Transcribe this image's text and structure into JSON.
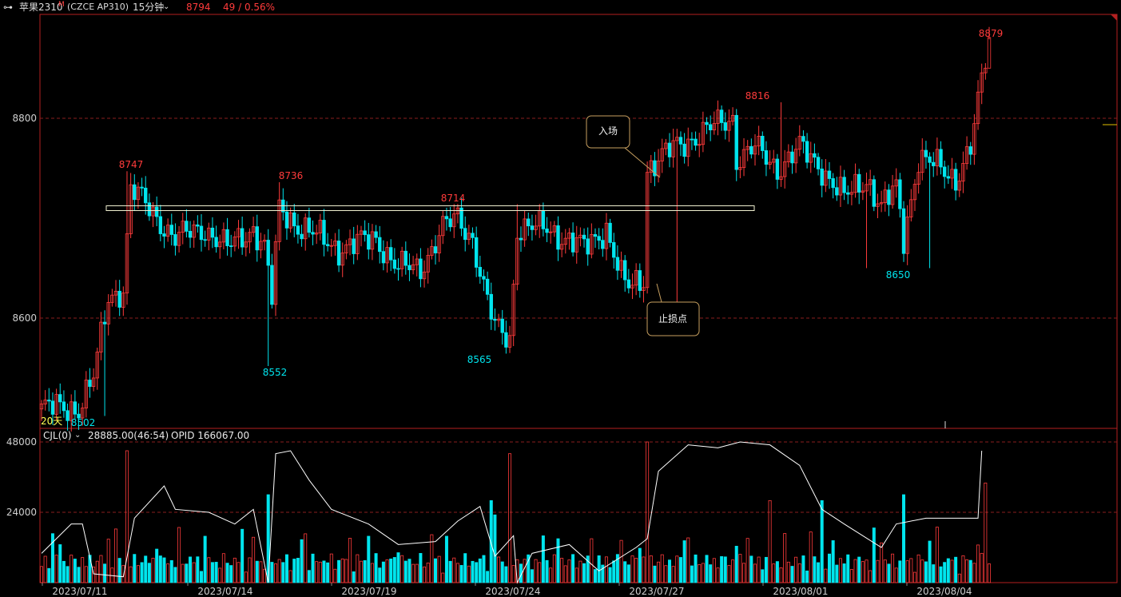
{
  "header": {
    "icon": "link-icon",
    "symbol": "苹果2310",
    "symbol_mark": "M",
    "exchange_code": "(CZCE AP310)",
    "period": "15分钟",
    "last_price": "8794",
    "change": "49 / 0.56%"
  },
  "indicator": {
    "name": "CJL(0)",
    "volume_text": "28885.00(46:54)",
    "opid_text": "OPID 166067.00"
  },
  "labels": {
    "days": "20天",
    "entry": "入场",
    "stop": "止损点"
  },
  "colors": {
    "up": "#ff3b3b",
    "down": "#00e5ee",
    "line": "#ffffff",
    "grid": "#8a1e1e",
    "frame": "#b32121",
    "annotation": "#ffff66",
    "box_border": "#c8a060"
  },
  "chart_data": [
    {
      "type": "candlestick",
      "name": "price",
      "ylim": [
        8470,
        8900
      ],
      "yticks": [
        8600,
        8800
      ],
      "xticks": [
        "2023/07/11",
        "2023/07/14",
        "2023/07/19",
        "2023/07/24",
        "2023/07/27",
        "2023/08/01",
        "2023/08/04"
      ],
      "annotations": [
        {
          "text": "8747",
          "value": 8747,
          "kind": "high"
        },
        {
          "text": "8736",
          "value": 8736,
          "kind": "high"
        },
        {
          "text": "8714",
          "value": 8714,
          "kind": "high"
        },
        {
          "text": "8816",
          "value": 8816,
          "kind": "high"
        },
        {
          "text": "8879",
          "value": 8879,
          "kind": "high"
        },
        {
          "text": "8552",
          "value": 8552,
          "kind": "low"
        },
        {
          "text": "8565",
          "value": 8565,
          "kind": "low"
        },
        {
          "text": "8650",
          "value": 8650,
          "kind": "low"
        },
        {
          "text": "8502",
          "value": 8502,
          "kind": "low"
        }
      ],
      "resistance_band": [
        8705,
        8710
      ],
      "close_segments": [
        [
          0,
          8510
        ],
        [
          10,
          8510
        ],
        [
          14,
          8540
        ],
        [
          18,
          8620
        ],
        [
          22,
          8630
        ],
        [
          24,
          8730
        ],
        [
          36,
          8680
        ],
        [
          44,
          8690
        ],
        [
          50,
          8670
        ],
        [
          57,
          8690
        ],
        [
          60,
          8670
        ],
        [
          62,
          8620
        ],
        [
          64,
          8710
        ],
        [
          70,
          8690
        ],
        [
          80,
          8670
        ],
        [
          90,
          8680
        ],
        [
          96,
          8650
        ],
        [
          102,
          8650
        ],
        [
          108,
          8690
        ],
        [
          112,
          8700
        ],
        [
          116,
          8680
        ],
        [
          119,
          8630
        ],
        [
          122,
          8590
        ],
        [
          126,
          8580
        ],
        [
          128,
          8690
        ],
        [
          136,
          8690
        ],
        [
          146,
          8670
        ],
        [
          152,
          8690
        ],
        [
          156,
          8640
        ],
        [
          158,
          8630
        ],
        [
          162,
          8640
        ],
        [
          163,
          8750
        ],
        [
          170,
          8770
        ],
        [
          180,
          8790
        ],
        [
          186,
          8800
        ],
        [
          187,
          8760
        ],
        [
          192,
          8770
        ],
        [
          198,
          8750
        ],
        [
          204,
          8770
        ],
        [
          210,
          8750
        ],
        [
          216,
          8720
        ],
        [
          222,
          8740
        ],
        [
          226,
          8710
        ],
        [
          230,
          8730
        ],
        [
          232,
          8680
        ],
        [
          236,
          8760
        ],
        [
          242,
          8750
        ],
        [
          246,
          8740
        ],
        [
          250,
          8770
        ],
        [
          255,
          8880
        ]
      ]
    },
    {
      "type": "bar+line",
      "name": "volume / open interest",
      "ylim": [
        0,
        50000
      ],
      "yticks": [
        24000,
        48000
      ],
      "volume_spikes": [
        {
          "bar": 23,
          "value": 45000
        },
        {
          "bar": 61,
          "value": 30000
        },
        {
          "bar": 121,
          "value": 28000
        },
        {
          "bar": 126,
          "value": 44000
        },
        {
          "bar": 163,
          "value": 48000
        },
        {
          "bar": 196,
          "value": 28000
        },
        {
          "bar": 210,
          "value": 28000
        },
        {
          "bar": 232,
          "value": 30000
        },
        {
          "bar": 254,
          "value": 34000
        }
      ],
      "oi_points": [
        [
          0,
          10000
        ],
        [
          8,
          20000
        ],
        [
          11,
          20000
        ],
        [
          14,
          3000
        ],
        [
          22,
          2000
        ],
        [
          25,
          22000
        ],
        [
          33,
          33000
        ],
        [
          36,
          25000
        ],
        [
          45,
          24000
        ],
        [
          52,
          20000
        ],
        [
          57,
          25000
        ],
        [
          61,
          0
        ],
        [
          63,
          44000
        ],
        [
          67,
          45000
        ],
        [
          72,
          35000
        ],
        [
          78,
          25000
        ],
        [
          88,
          20000
        ],
        [
          96,
          13000
        ],
        [
          106,
          14000
        ],
        [
          112,
          21000
        ],
        [
          118,
          26000
        ],
        [
          122,
          9000
        ],
        [
          127,
          16000
        ],
        [
          128,
          0
        ],
        [
          132,
          10000
        ],
        [
          142,
          13000
        ],
        [
          150,
          4000
        ],
        [
          160,
          12000
        ],
        [
          163,
          15000
        ],
        [
          166,
          38000
        ],
        [
          174,
          47000
        ],
        [
          182,
          46000
        ],
        [
          188,
          48000
        ],
        [
          196,
          47000
        ],
        [
          204,
          40000
        ],
        [
          210,
          25000
        ],
        [
          216,
          20000
        ],
        [
          226,
          12000
        ],
        [
          230,
          20000
        ],
        [
          238,
          22000
        ],
        [
          252,
          22000
        ],
        [
          253,
          45000
        ]
      ]
    }
  ]
}
